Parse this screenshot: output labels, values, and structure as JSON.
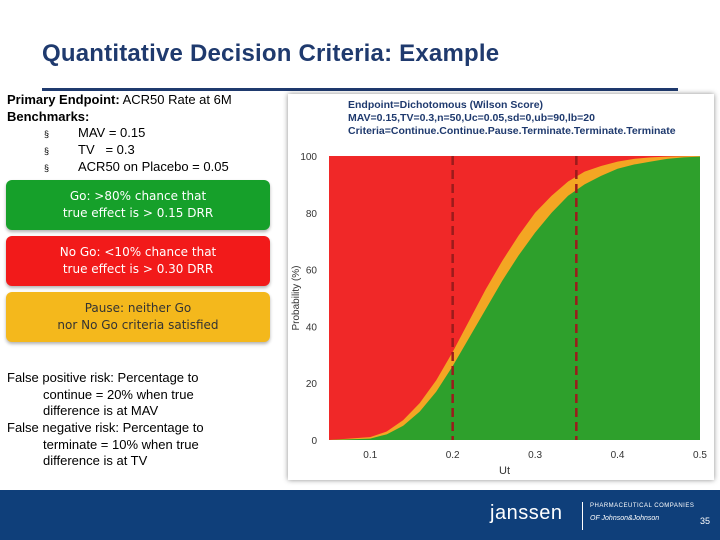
{
  "slide": {
    "title": "Quantitative Decision Criteria: Example",
    "primary_label": "Primary Endpoint:",
    "primary_value": " ACR50 Rate at 6M",
    "benchmarks_label": "Benchmarks:",
    "benchmarks": [
      {
        "bullet": "§",
        "text": "MAV = 0.15"
      },
      {
        "bullet": "§",
        "text": "TV   = 0.3"
      },
      {
        "bullet": "§",
        "text": "ACR50 on Placebo = 0.05"
      }
    ],
    "go_line1": "Go: >80% chance that",
    "go_line2": "true effect is > 0.15 DRR",
    "nogo_line1": "No Go: <10% chance that",
    "nogo_line2": "true effect is > 0.30 DRR",
    "pause_line1": "Pause: neither Go",
    "pause_line2": "nor No Go criteria satisfied",
    "fp_label": "False positive risk:",
    "fp_text1": " Percentage to",
    "fp_text2": "continue  = 20% when true",
    "fp_text3": "difference is at MAV",
    "fn_label": "False negative risk:",
    "fn_text1": " Percentage to",
    "fn_text2": "terminate = 10% when true",
    "fn_text3": "difference is at TV",
    "footer_brand": "janssen",
    "footer_tag1": "PHARMACEUTICAL COMPANIES",
    "footer_tag2": "OF Johnson&Johnson",
    "page_number": "35"
  },
  "chart_data": {
    "type": "area",
    "title_lines": [
      "Endpoint=Dichotomous (Wilson Score)",
      "MAV=0.15,TV=0.3,n=50,Uc=0.05,sd=0,ub=90,lb=20",
      "Criteria=Continue.Continue.Pause.Terminate.Terminate.Terminate"
    ],
    "xlabel": "Ut",
    "ylabel": "Probability (%)",
    "xlim": [
      0.05,
      0.5
    ],
    "ylim": [
      0,
      100
    ],
    "xticks": [
      0.1,
      0.2,
      0.3,
      0.4,
      0.5
    ],
    "yticks": [
      0,
      20,
      40,
      60,
      80,
      100
    ],
    "xtick_labels": [
      "0.1",
      "0.2",
      "0.3",
      "0.4",
      "0.5"
    ],
    "ytick_labels": [
      "0",
      "20",
      "40",
      "60",
      "80",
      "100"
    ],
    "dashed_lines_x": [
      0.2,
      0.35
    ],
    "series": [
      {
        "color": "#2ea02c",
        "x": [
          0.05,
          0.1,
          0.12,
          0.14,
          0.16,
          0.18,
          0.2,
          0.22,
          0.24,
          0.26,
          0.28,
          0.3,
          0.32,
          0.34,
          0.36,
          0.38,
          0.4,
          0.42,
          0.44,
          0.46,
          0.48,
          0.5
        ],
        "y": [
          0,
          0.5,
          2,
          5,
          10,
          17,
          26,
          36,
          46,
          56,
          65,
          73,
          80,
          86,
          90,
          93,
          95.5,
          97,
          98,
          99,
          99.5,
          99.8
        ]
      },
      {
        "color": "#f4a623",
        "x": [
          0.05,
          0.1,
          0.12,
          0.14,
          0.16,
          0.18,
          0.2,
          0.22,
          0.24,
          0.26,
          0.28,
          0.3,
          0.32,
          0.34,
          0.36,
          0.38,
          0.4,
          0.42,
          0.44,
          0.46,
          0.48,
          0.5
        ],
        "y": [
          0,
          1,
          3,
          7,
          13,
          21,
          31,
          42,
          53,
          63,
          72,
          80,
          86,
          91,
          94.5,
          96.5,
          98,
          99,
          99.5,
          99.8,
          99.9,
          100
        ]
      }
    ],
    "background_color": "#f02828"
  }
}
